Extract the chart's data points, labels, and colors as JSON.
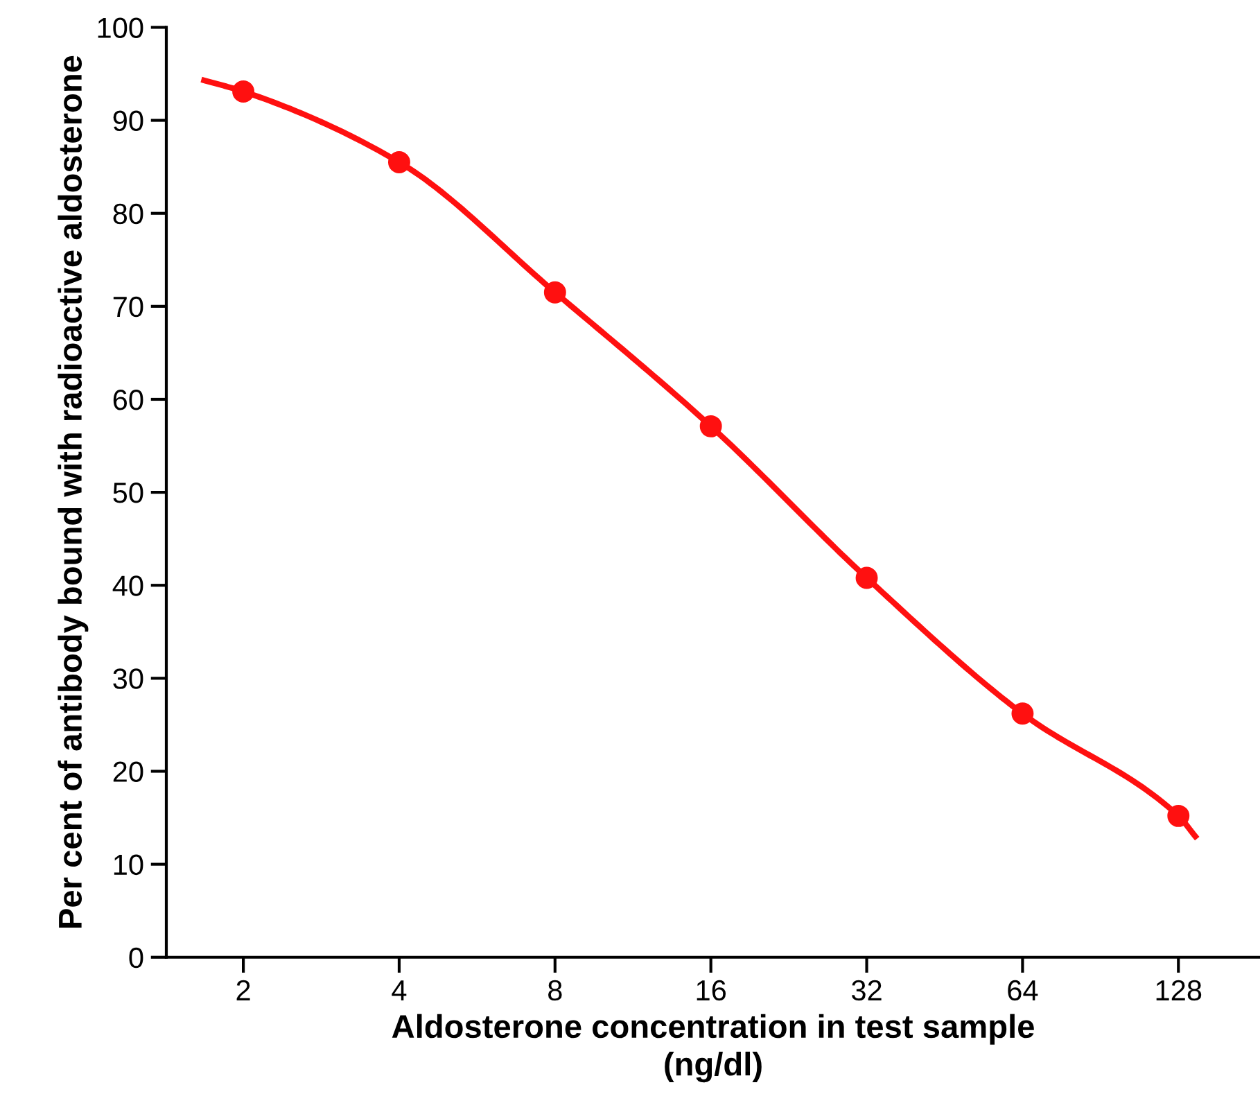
{
  "chart_data": {
    "type": "line",
    "xlabel": "Aldosterone concentration in test sample\n(ng/dl)",
    "ylabel": "Per cent of antibody bound with radioactive aldosterone",
    "log": "x",
    "xlim": [
      1.42,
      184
    ],
    "xticks": [
      2,
      4,
      8,
      16,
      32,
      64,
      128
    ],
    "ylim": [
      0,
      100
    ],
    "yticks": [
      0,
      10,
      20,
      30,
      40,
      50,
      60,
      70,
      80,
      90,
      100
    ],
    "grid": false,
    "series": [
      {
        "color": "#ff1010",
        "marker": "none",
        "line_style": "solid",
        "x": [
          1.68,
          2,
          4,
          8,
          16,
          32,
          64,
          128,
          138
        ],
        "values": [
          94.3,
          93.1,
          85.5,
          71.5,
          57.1,
          40.8,
          26.2,
          15.2,
          13.0
        ]
      },
      {
        "type": "scatter",
        "color": "#ff1010",
        "marker": "circle",
        "x": [
          2,
          4,
          8,
          16,
          32,
          64,
          128
        ],
        "values": [
          93.1,
          85.5,
          71.5,
          57.1,
          40.8,
          26.2,
          15.2
        ]
      }
    ]
  }
}
